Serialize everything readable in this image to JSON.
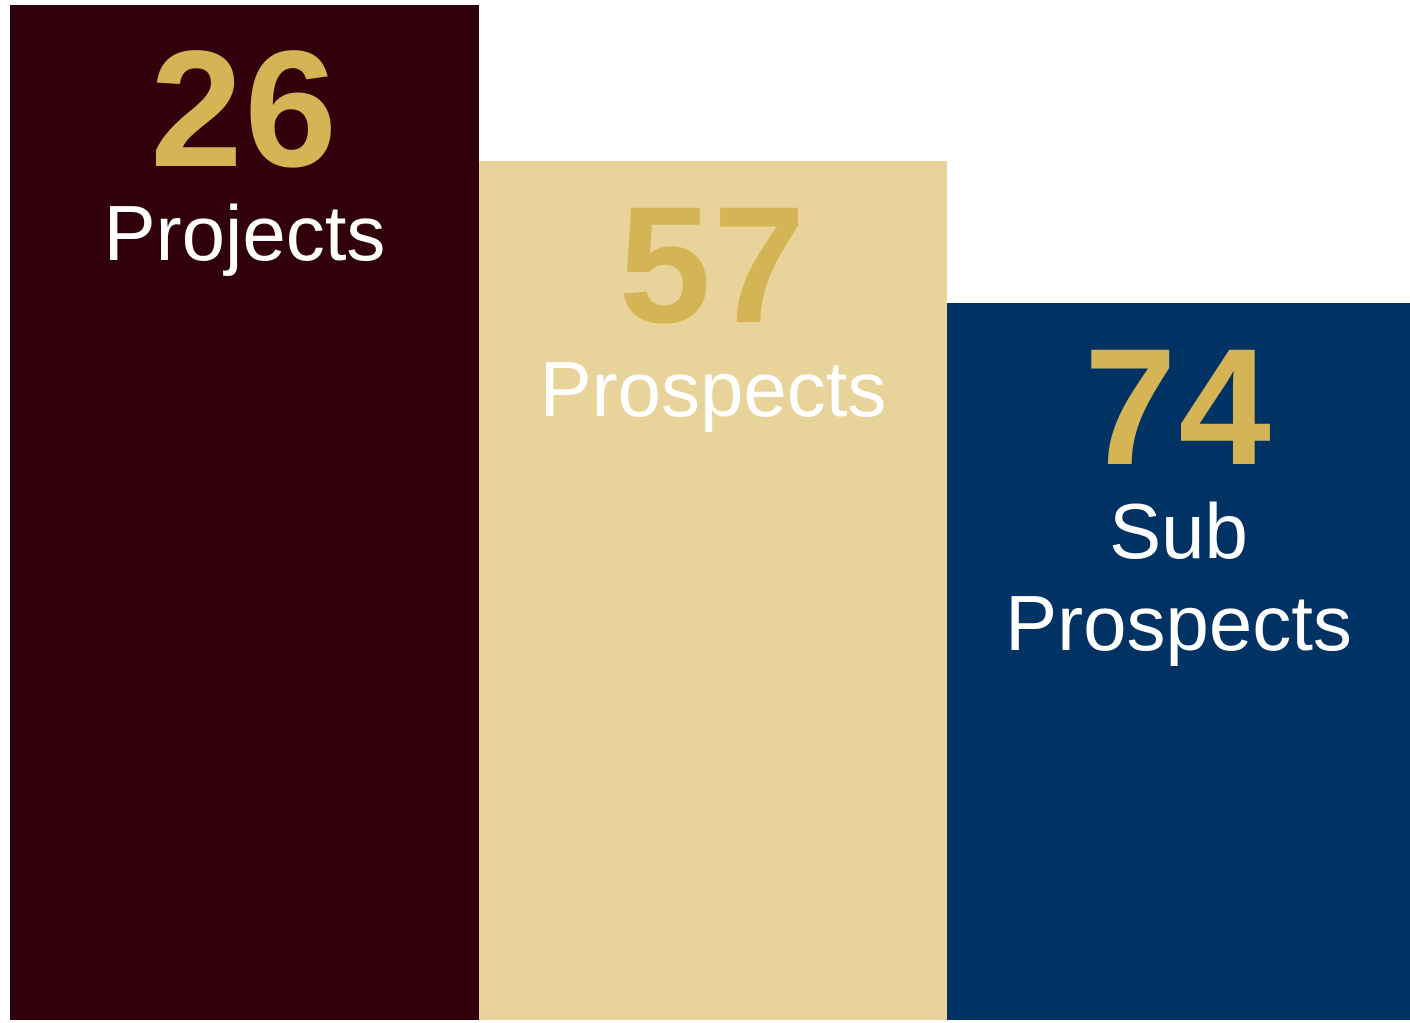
{
  "stats": [
    {
      "value": 26,
      "label": "Projects"
    },
    {
      "value": 57,
      "label": "Prospects"
    },
    {
      "value": 74,
      "label": "Sub Prospects"
    }
  ]
}
